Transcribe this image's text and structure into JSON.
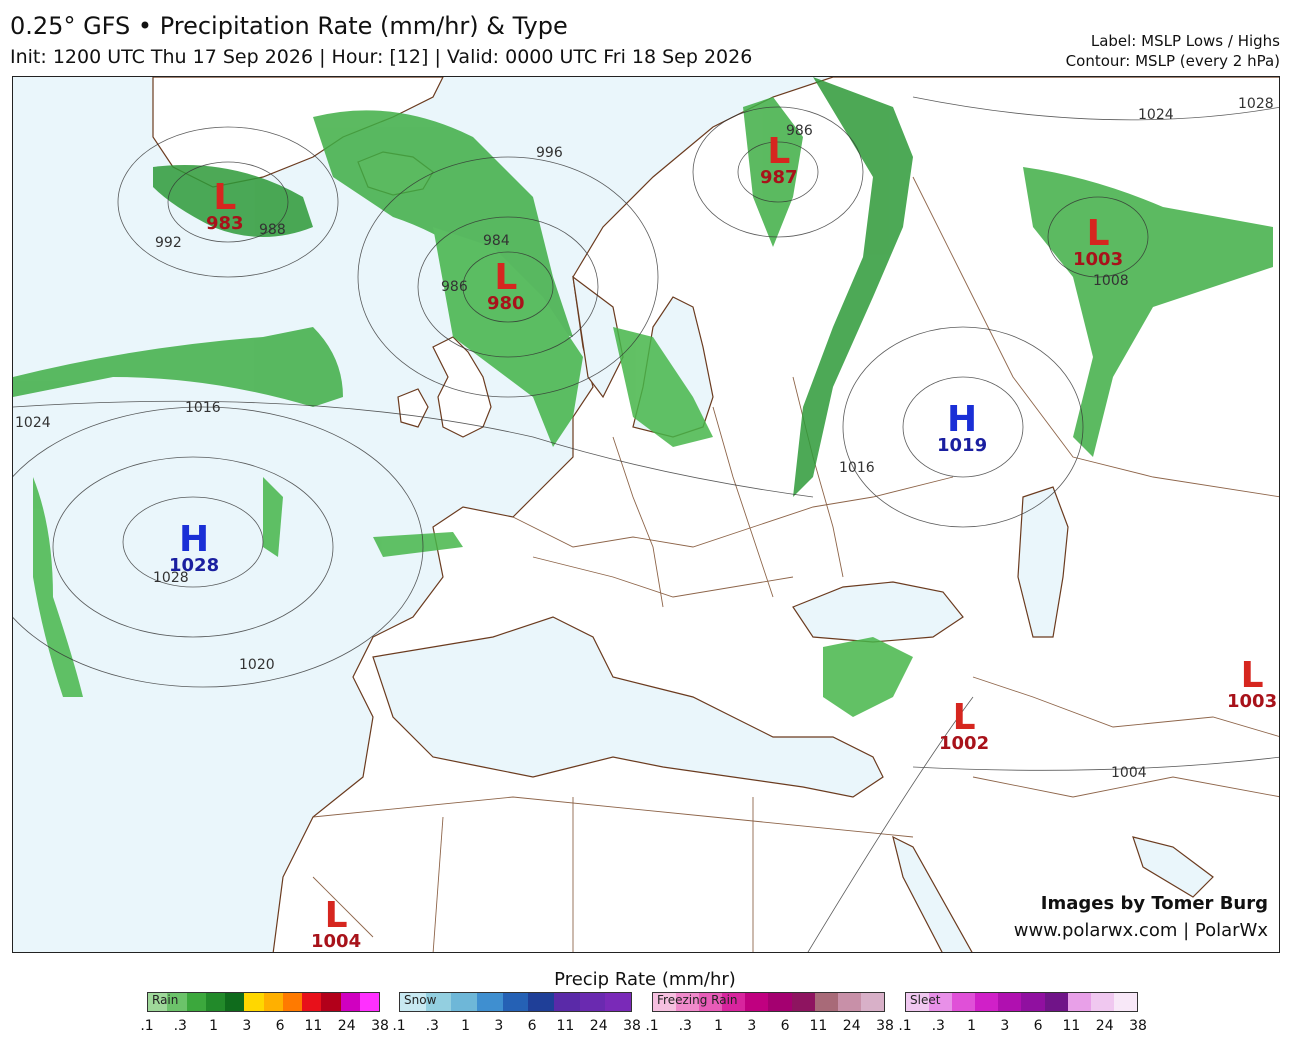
{
  "header": {
    "title": "0.25° GFS • Precipitation Rate (mm/hr) & Type",
    "subtitle": "Init: 1200 UTC Thu 17 Sep 2026 | Hour: [12] | Valid: 0000 UTC Fri 18 Sep 2026",
    "label_note": "Label: MSLP Lows / Highs",
    "contour_note": "Contour: MSLP (every 2 hPa)"
  },
  "pressure_centers": [
    {
      "type": "L",
      "value": "983"
    },
    {
      "type": "L",
      "value": "980"
    },
    {
      "type": "L",
      "value": "987"
    },
    {
      "type": "L",
      "value": "1003"
    },
    {
      "type": "H",
      "value": "1019"
    },
    {
      "type": "H",
      "value": "1028"
    },
    {
      "type": "L",
      "value": "1002"
    },
    {
      "type": "L",
      "value": "1003"
    },
    {
      "type": "L",
      "value": "1004"
    }
  ],
  "isobar_labels": [
    "992",
    "988",
    "984",
    "986",
    "996",
    "1016",
    "1024",
    "1028",
    "1020",
    "1016",
    "1004",
    "1024",
    "1028",
    "1008",
    "986"
  ],
  "credits": {
    "line1": "Images by Tomer Burg",
    "line2": "www.polarwx.com | PolarWx"
  },
  "scale": {
    "title": "Precip Rate (mm/hr)",
    "ticks": [
      ".1",
      ".3",
      "1",
      "3",
      "6",
      "11",
      "24",
      "38"
    ],
    "bars": [
      {
        "name": "Rain",
        "colors": [
          "#9fd89a",
          "#6cc36a",
          "#3ca83d",
          "#228a2a",
          "#0f6b1c",
          "#ffd700",
          "#ffb000",
          "#ff7a00",
          "#e8101a",
          "#b2001a",
          "#d000c0",
          "#ff30ff"
        ]
      },
      {
        "name": "Snow",
        "colors": [
          "#c8e9f2",
          "#93cfe0",
          "#6eb7d8",
          "#3f8fd0",
          "#2561b5",
          "#1f3f98",
          "#5a2aa8",
          "#6a2ab0",
          "#7a2ab8"
        ]
      },
      {
        "name": "Freezing Rain",
        "colors": [
          "#f6c0e0",
          "#f08acb",
          "#e85cb8",
          "#d8249e",
          "#c00080",
          "#a40070",
          "#8e1460",
          "#a86a78",
          "#c890a8",
          "#d8b0c8"
        ]
      },
      {
        "name": "Sleet",
        "colors": [
          "#f0c8f0",
          "#e890e8",
          "#e050d8",
          "#d020c8",
          "#b010b0",
          "#9010a0",
          "#701488",
          "#e8a0e8",
          "#f0c8f0",
          "#f8e8f8"
        ]
      }
    ]
  }
}
